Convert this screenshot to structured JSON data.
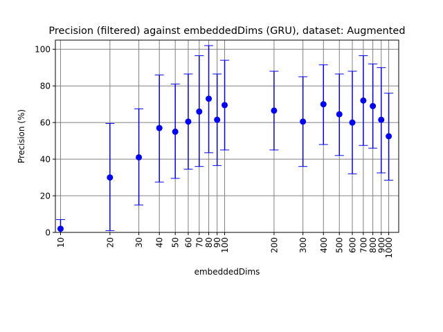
{
  "chart_data": {
    "type": "scatter",
    "title": "Precision (filtered) against embeddedDims (GRU), dataset: Augmented",
    "xlabel": "embeddedDims",
    "ylabel": "Precision (%)",
    "x_scale": "log",
    "xlim": [
      9.3,
      1150
    ],
    "ylim": [
      0,
      105
    ],
    "x_ticks": [
      10,
      20,
      30,
      40,
      50,
      60,
      70,
      80,
      90,
      100,
      200,
      300,
      400,
      500,
      600,
      700,
      800,
      900,
      1000
    ],
    "x_tick_labels": [
      "10",
      "20",
      "30",
      "40",
      "50",
      "60",
      "70",
      "80",
      "90",
      "100",
      "200",
      "300",
      "400",
      "500",
      "600",
      "700",
      "800",
      "900",
      "1000"
    ],
    "y_ticks": [
      0,
      20,
      40,
      60,
      80,
      100
    ],
    "y_tick_labels": [
      "0",
      "20",
      "40",
      "60",
      "80",
      "100"
    ],
    "grid": true,
    "series": [
      {
        "color": "#0000ff",
        "points": [
          {
            "x": 10,
            "y": 2,
            "low": 0,
            "high": 7
          },
          {
            "x": 20,
            "y": 30,
            "low": 1,
            "high": 59.5
          },
          {
            "x": 30,
            "y": 41,
            "low": 15,
            "high": 67.5
          },
          {
            "x": 40,
            "y": 57,
            "low": 27.5,
            "high": 86
          },
          {
            "x": 50,
            "y": 55,
            "low": 29.5,
            "high": 81
          },
          {
            "x": 60,
            "y": 60.5,
            "low": 34.5,
            "high": 86.5
          },
          {
            "x": 70,
            "y": 66,
            "low": 36,
            "high": 96.5
          },
          {
            "x": 80,
            "y": 73,
            "low": 43.5,
            "high": 102
          },
          {
            "x": 90,
            "y": 61.5,
            "low": 36.5,
            "high": 86.5
          },
          {
            "x": 100,
            "y": 69.5,
            "low": 45,
            "high": 94
          },
          {
            "x": 200,
            "y": 66.5,
            "low": 45,
            "high": 88
          },
          {
            "x": 300,
            "y": 60.5,
            "low": 36,
            "high": 85
          },
          {
            "x": 400,
            "y": 70,
            "low": 48,
            "high": 91.5
          },
          {
            "x": 500,
            "y": 64.5,
            "low": 42,
            "high": 86.5
          },
          {
            "x": 600,
            "y": 60,
            "low": 32,
            "high": 88
          },
          {
            "x": 700,
            "y": 72,
            "low": 47.5,
            "high": 96.5
          },
          {
            "x": 800,
            "y": 69,
            "low": 46,
            "high": 92
          },
          {
            "x": 900,
            "y": 61.5,
            "low": 32.5,
            "high": 90
          },
          {
            "x": 1000,
            "y": 52.5,
            "low": 28.5,
            "high": 76
          }
        ]
      }
    ]
  }
}
